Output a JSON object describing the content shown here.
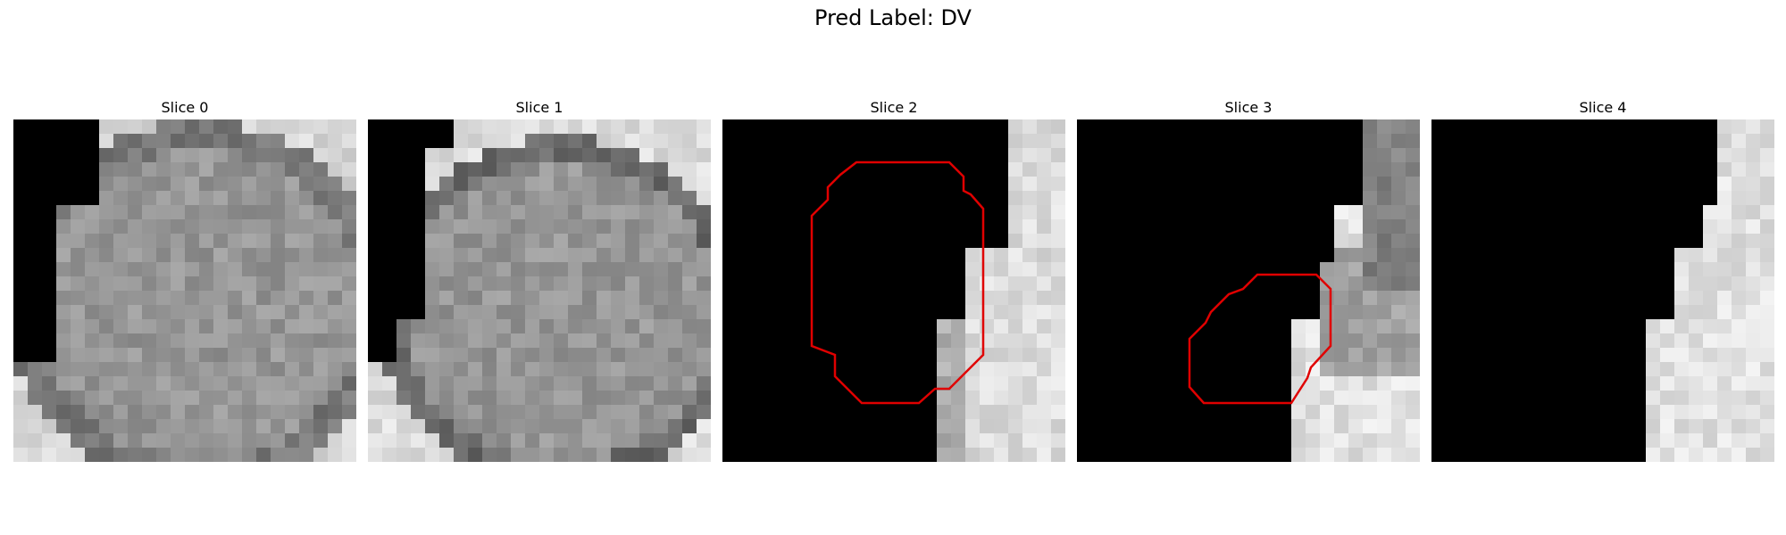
{
  "figure": {
    "title": "Pred Label: DV",
    "slices": [
      {
        "title": "Slice 0",
        "has_contour": false
      },
      {
        "title": "Slice 1",
        "has_contour": false
      },
      {
        "title": "Slice 2",
        "has_contour": true
      },
      {
        "title": "Slice 3",
        "has_contour": true
      },
      {
        "title": "Slice 4",
        "has_contour": false
      }
    ],
    "contour_color": "#e00000",
    "colormap": "grayscale"
  }
}
